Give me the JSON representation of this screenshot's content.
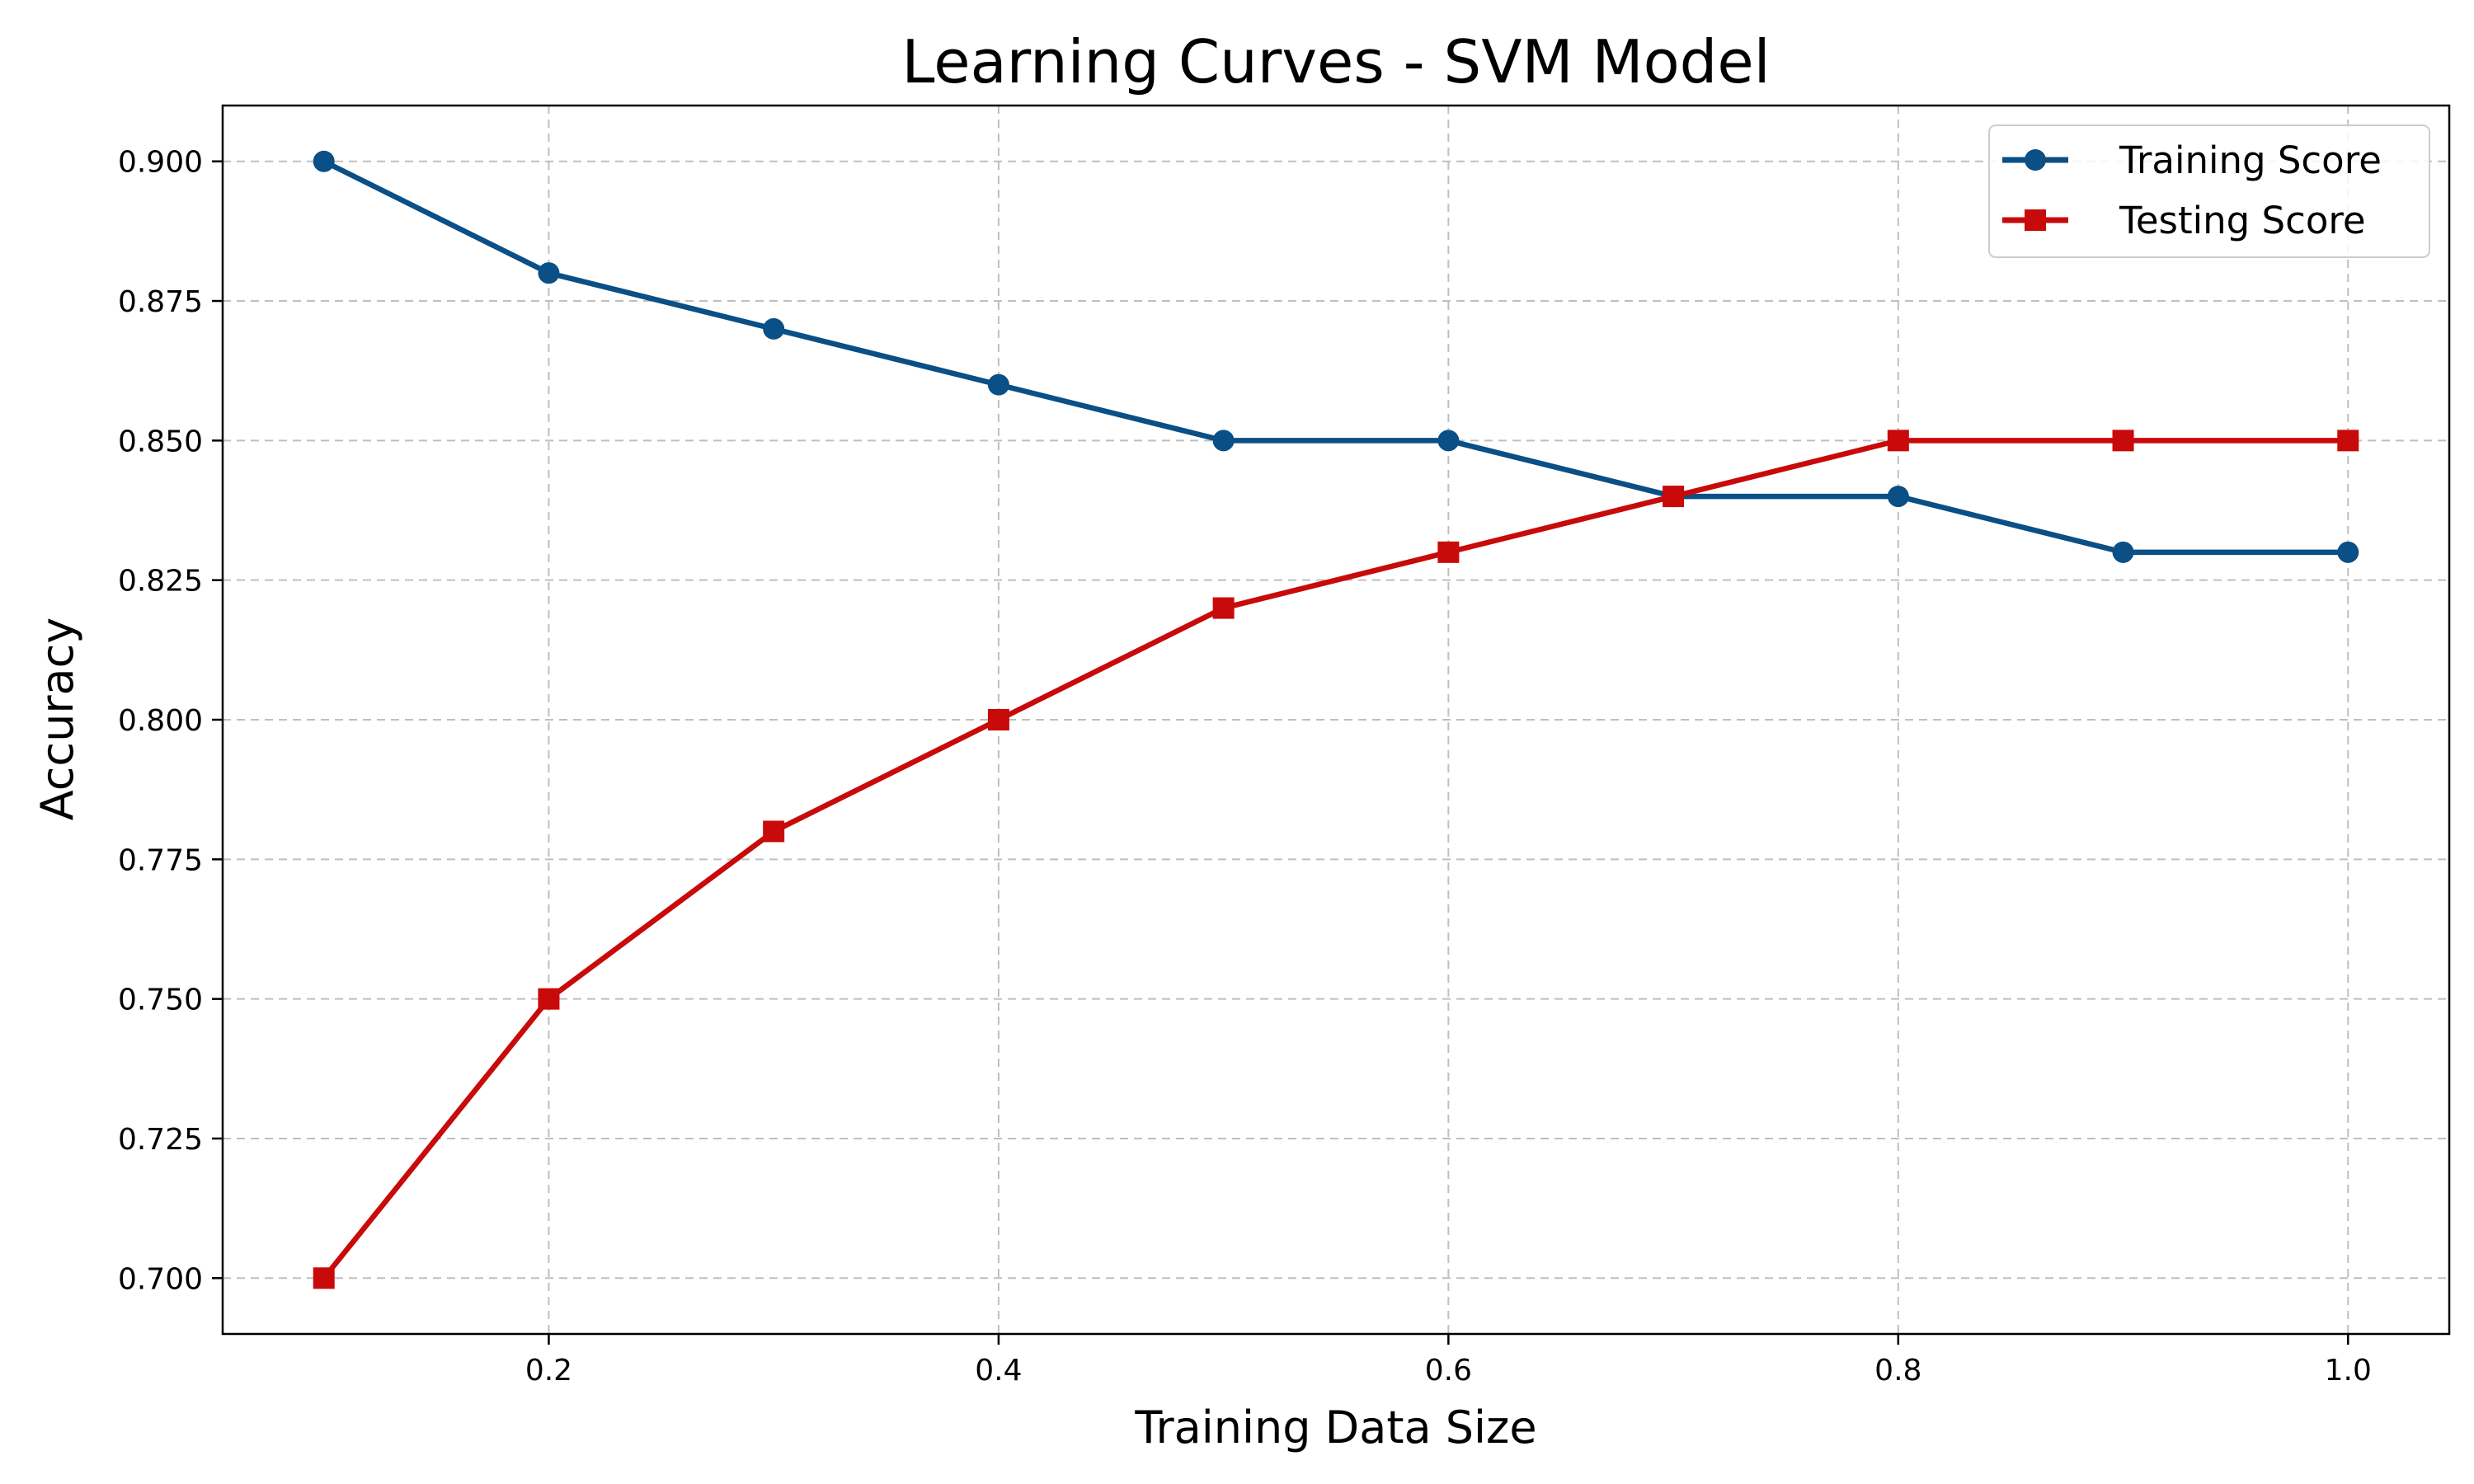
{
  "chart_data": {
    "type": "line",
    "title": "Learning Curves - SVM Model",
    "xlabel": "Training Data Size",
    "ylabel": "Accuracy",
    "x": [
      0.1,
      0.2,
      0.3,
      0.4,
      0.5,
      0.6,
      0.7,
      0.8,
      0.9,
      1.0
    ],
    "xlim": [
      0.055,
      1.045
    ],
    "ylim": [
      0.69,
      0.91
    ],
    "xticks": [
      0.2,
      0.4,
      0.6,
      0.8,
      1.0
    ],
    "xtick_labels": [
      "0.2",
      "0.4",
      "0.6",
      "0.8",
      "1.0"
    ],
    "yticks": [
      0.7,
      0.725,
      0.75,
      0.775,
      0.8,
      0.825,
      0.85,
      0.875,
      0.9
    ],
    "ytick_labels": [
      "0.700",
      "0.725",
      "0.750",
      "0.775",
      "0.800",
      "0.825",
      "0.850",
      "0.875",
      "0.900"
    ],
    "grid": true,
    "legend_position": "top-right",
    "series": [
      {
        "name": "Training Score",
        "values": [
          0.9,
          0.88,
          0.87,
          0.86,
          0.85,
          0.85,
          0.84,
          0.84,
          0.83,
          0.83
        ],
        "color": "#0a4f86",
        "marker": "circle"
      },
      {
        "name": "Testing Score",
        "values": [
          0.7,
          0.75,
          0.78,
          0.8,
          0.82,
          0.83,
          0.84,
          0.85,
          0.85,
          0.85
        ],
        "color": "#c80a0a",
        "marker": "square"
      }
    ]
  }
}
